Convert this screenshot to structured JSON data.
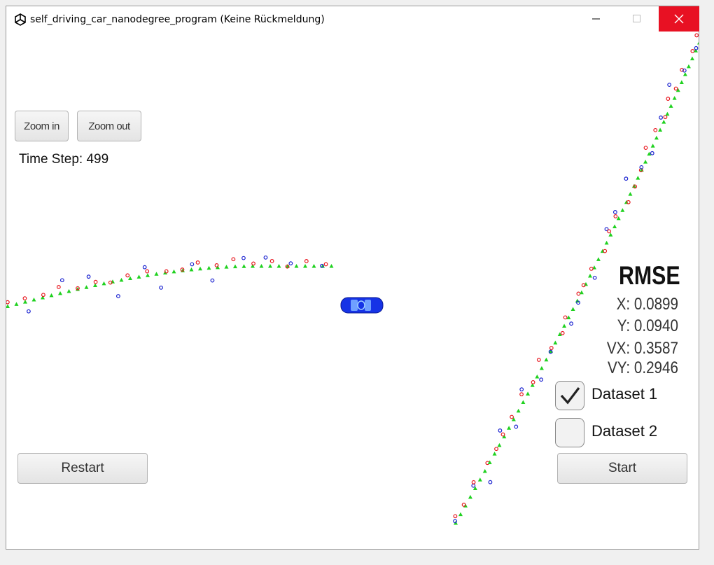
{
  "window": {
    "title": "self_driving_car_nanodegree_program (Keine Rückmeldung)",
    "controls": [
      "minimize",
      "maximize",
      "close"
    ]
  },
  "toolbar": {
    "zoom_in_label": "Zoom in",
    "zoom_out_label": "Zoom out"
  },
  "status": {
    "time_step_label": "Time Step: 499"
  },
  "rmse": {
    "title": "RMSE",
    "x": "X: 0.0899",
    "y": "Y: 0.0940",
    "vx": "VX: 0.3587",
    "vy": "VY: 0.2946"
  },
  "datasets": [
    {
      "label": "Dataset 1",
      "checked": true
    },
    {
      "label": "Dataset 2",
      "checked": false
    }
  ],
  "actions": {
    "restart_label": "Restart",
    "start_label": "Start"
  },
  "colors": {
    "lidar": "#e8171f",
    "radar": "#1a22d0",
    "estimate": "#1fd11f",
    "car": "#1633e6",
    "close_button": "#e81123"
  }
}
